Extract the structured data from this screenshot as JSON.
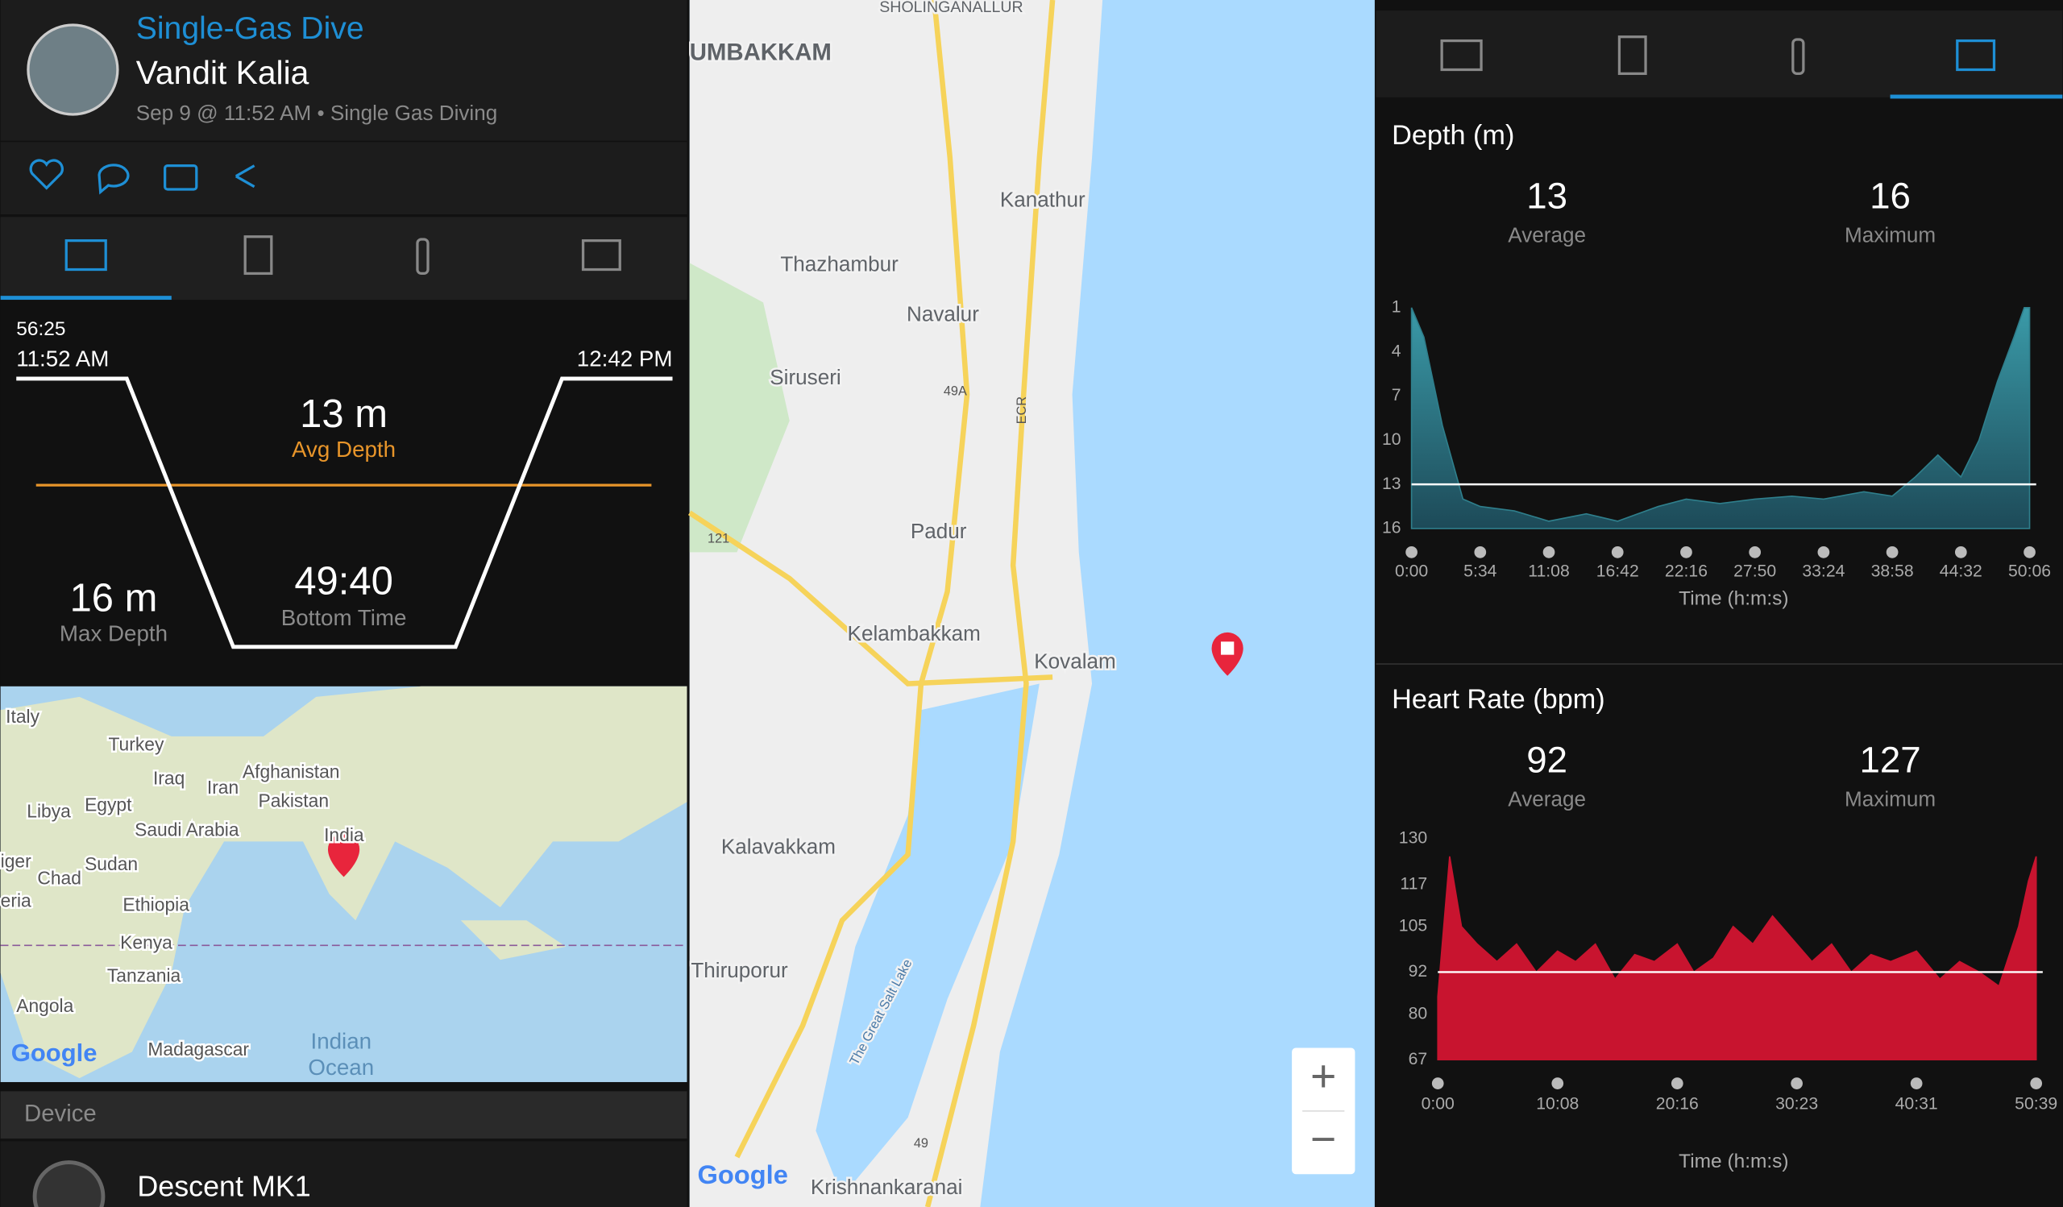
{
  "header": {
    "title": "Single-Gas Dive",
    "user": "Vandit Kalia",
    "subtitle": "Sep 9 @ 11:52 AM • Single Gas Diving"
  },
  "dive_profile": {
    "duration": "56:25",
    "start": "11:52 AM",
    "end": "12:42 PM",
    "avg_depth": "13 m",
    "avg_depth_label": "Avg Depth",
    "max_depth": "16 m",
    "max_depth_label": "Max Depth",
    "bottom_time": "49:40",
    "bottom_time_label": "Bottom Time"
  },
  "world_map": {
    "labels": [
      "Italy",
      "Turkey",
      "Afghanistan",
      "Iraq",
      "Iran",
      "Pakistan",
      "Libya",
      "Egypt",
      "Saudi Arabia",
      "India",
      "iger",
      "Chad",
      "Sudan",
      "eria",
      "Ethiopia",
      "Kenya",
      "Tanzania",
      "Angola",
      "Madagascar",
      "Indian",
      "Ocean",
      "Google"
    ]
  },
  "device": {
    "section": "Device",
    "name": "Descent MK1"
  },
  "map": {
    "labels": [
      "SHOLINGANALLUR",
      "UMBAKKAM",
      "Kanathur",
      "Thazhambur",
      "Navalur",
      "Siruseri",
      "Padur",
      "Kelambakkam",
      "Kovalam",
      "Kalavakkam",
      "Thiruporur",
      "Krishnankaranai",
      "The Great Salt Lake",
      "Google"
    ],
    "shields": [
      "49A",
      "ECR",
      "121",
      "49"
    ],
    "zoom": [
      "+",
      "−"
    ]
  },
  "depth_chart": {
    "type": "area",
    "title": "Depth (m)",
    "average": 13,
    "average_label": "Average",
    "maximum": 16,
    "maximum_label": "Maximum",
    "x_label": "Time (h:m:s)",
    "color": "#2f7f8c",
    "x": [
      0,
      60,
      150,
      250,
      334,
      500,
      668,
      850,
      1002,
      1200,
      1336,
      1500,
      1670,
      1850,
      2004,
      2200,
      2338,
      2450,
      2560,
      2672,
      2760,
      2850,
      2930,
      2980,
      3006
    ],
    "values": [
      1,
      3,
      9,
      14,
      14.5,
      14.8,
      15.5,
      15,
      15.5,
      14.5,
      14,
      14.3,
      14,
      13.8,
      14,
      13.5,
      13.8,
      12.5,
      11,
      12.5,
      10,
      6,
      3,
      1,
      1
    ],
    "xlim": [
      0,
      3006
    ],
    "ylim": [
      16,
      1
    ],
    "yticks": [
      1,
      4,
      7,
      10,
      13,
      16
    ],
    "xticks": [
      {
        "value": 0,
        "label": "0:00"
      },
      {
        "value": 334,
        "label": "5:34"
      },
      {
        "value": 668,
        "label": "11:08"
      },
      {
        "value": 1002,
        "label": "16:42"
      },
      {
        "value": 1336,
        "label": "22:16"
      },
      {
        "value": 1670,
        "label": "27:50"
      },
      {
        "value": 2004,
        "label": "33:24"
      },
      {
        "value": 2338,
        "label": "38:58"
      },
      {
        "value": 2672,
        "label": "44:32"
      },
      {
        "value": 3006,
        "label": "50:06"
      }
    ]
  },
  "hr_chart": {
    "type": "area",
    "title": "Heart Rate (bpm)",
    "average": 92,
    "average_label": "Average",
    "maximum": 127,
    "maximum_label": "Maximum",
    "x_label": "Time (h:m:s)",
    "color": "#c8142f",
    "x": [
      0,
      60,
      120,
      200,
      300,
      400,
      500,
      608,
      700,
      800,
      900,
      1000,
      1100,
      1216,
      1300,
      1400,
      1500,
      1600,
      1700,
      1823,
      1900,
      2000,
      2100,
      2200,
      2300,
      2431,
      2550,
      2650,
      2750,
      2850,
      2950,
      3000,
      3039
    ],
    "values": [
      85,
      125,
      105,
      100,
      95,
      100,
      92,
      98,
      95,
      100,
      90,
      97,
      95,
      100,
      92,
      96,
      105,
      100,
      108,
      100,
      95,
      100,
      92,
      97,
      95,
      98,
      90,
      95,
      92,
      88,
      105,
      118,
      125
    ],
    "xlim": [
      0,
      3039
    ],
    "ylim": [
      67,
      130
    ],
    "yticks": [
      130,
      117,
      105,
      92,
      80,
      67
    ],
    "xticks": [
      {
        "value": 0,
        "label": "0:00"
      },
      {
        "value": 608,
        "label": "10:08"
      },
      {
        "value": 1216,
        "label": "20:16"
      },
      {
        "value": 1823,
        "label": "30:23"
      },
      {
        "value": 2431,
        "label": "40:31"
      },
      {
        "value": 3039,
        "label": "50:39"
      }
    ]
  }
}
